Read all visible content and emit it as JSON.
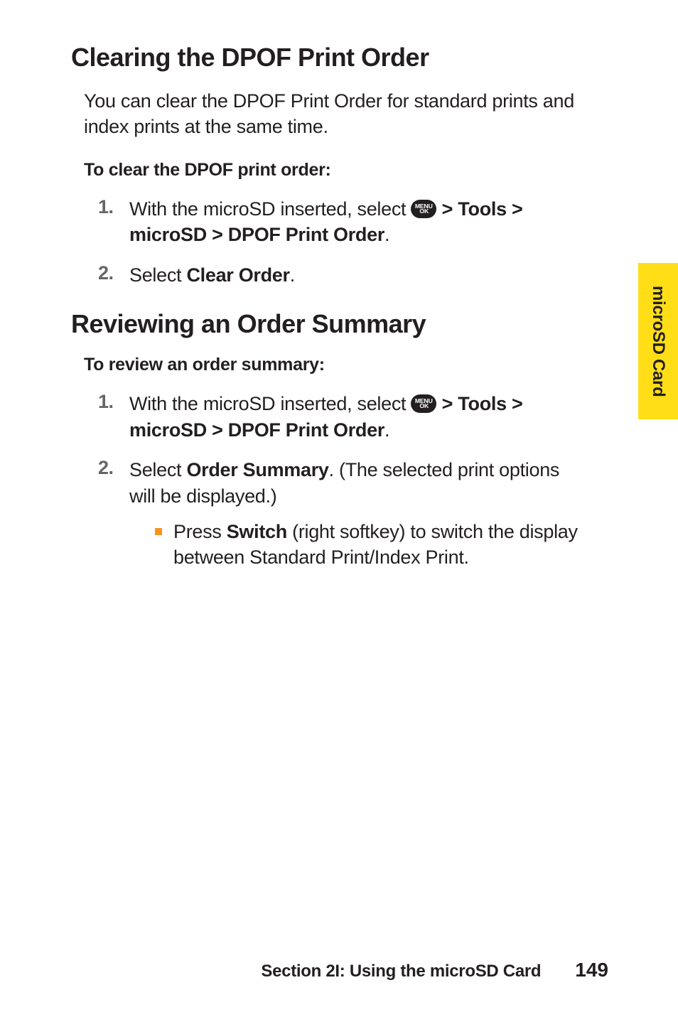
{
  "sections": {
    "clearing": {
      "title": "Clearing the DPOF Print Order",
      "intro": "You can clear the DPOF Print Order for standard prints and index prints at the same time.",
      "lead": "To clear the DPOF print order:",
      "steps": [
        {
          "num": "1.",
          "pre": "With the microSD inserted, select ",
          "post_bold": " > Tools > microSD > DPOF Print Order",
          "tail": "."
        },
        {
          "num": "2.",
          "pre": "Select ",
          "post_bold": "Clear Order",
          "tail": "."
        }
      ]
    },
    "reviewing": {
      "title": "Reviewing an Order Summary",
      "lead": "To review an order summary:",
      "steps": [
        {
          "num": "1.",
          "pre": "With the microSD inserted, select ",
          "post_bold": " > Tools > microSD > DPOF Print Order",
          "tail": "."
        },
        {
          "num": "2.",
          "pre": "Select ",
          "post_bold": "Order Summary",
          "tail": ". (The selected print options will be displayed.)",
          "sub": {
            "pre": "Press ",
            "bold": "Switch",
            "post": " (right softkey) to switch the display between Standard Print/Index Print."
          }
        }
      ]
    }
  },
  "menu_icon": {
    "line1": "MENU",
    "line2": "OK"
  },
  "side_tab": "microSD Card",
  "footer": {
    "section": "Section 2I: Using the microSD Card",
    "page": "149"
  },
  "colors": {
    "text": "#231f20",
    "step_num": "#666666",
    "bullet": "#f7941e",
    "tab_bg": "#ffde17",
    "bg": "#ffffff"
  }
}
